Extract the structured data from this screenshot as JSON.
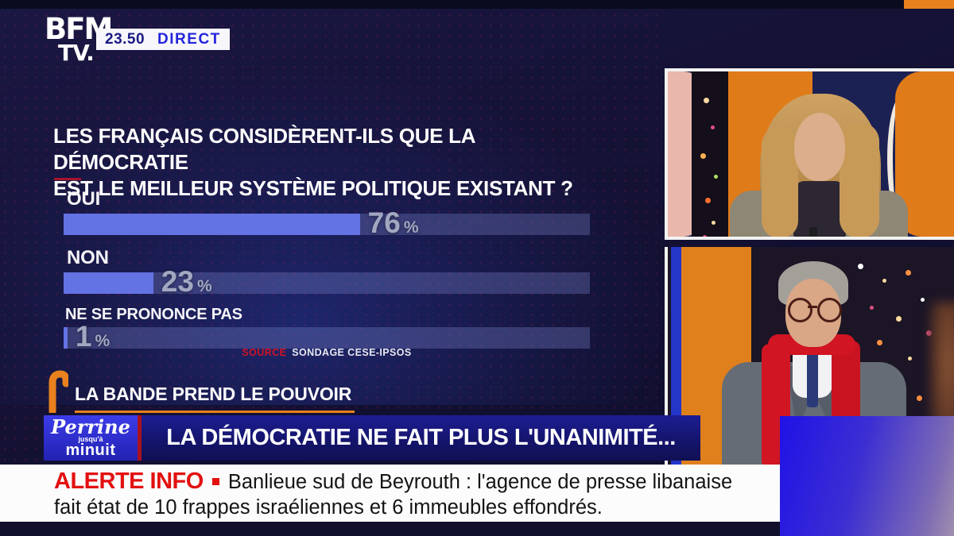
{
  "header": {
    "channel_line1": "BFM",
    "channel_line2": "TV.",
    "time": "23.50",
    "live_label": "DIRECT"
  },
  "chart_data": {
    "type": "bar",
    "orientation": "horizontal",
    "title_lines": [
      "LES FRANÇAIS CONSIDÈRENT-ILS QUE LA DÉMOCRATIE",
      "EST LE MEILLEUR SYSTÈME POLITIQUE EXISTANT ?"
    ],
    "categories": [
      "OUI",
      "NON",
      "NE SE PRONONCE PAS"
    ],
    "values": [
      76,
      23,
      1
    ],
    "unit": "%",
    "xlim": [
      0,
      100
    ],
    "track_max": 135,
    "grid": false,
    "source_prefix": "SOURCE",
    "source": "SONDAGE CESE-IPSOS"
  },
  "program_strip": {
    "label": "LA BANDE PREND LE POUVOIR"
  },
  "title_banner": {
    "program_line1": "Perrine",
    "program_line2": "jusqu'à",
    "program_line3": "minuit",
    "headline": "LA DÉMOCRATIE NE FAIT PLUS L'UNANIMITÉ..."
  },
  "alert": {
    "label": "ALERTE INFO",
    "line1": "Banlieue sud de Beyrouth : l'agence de presse libanaise",
    "line2": "fait état de 10 frappes israéliennes et 6 immeubles effondrés."
  },
  "colors": {
    "background_navy": "#141233",
    "accent_orange": "#e8811e",
    "alert_red": "#e31010",
    "bar_fill": "#6473e3",
    "bar_track": "rgba(132,143,215,0.30)",
    "value_gray": "rgba(168,175,198,0.95)",
    "banner_blue": "#15156e",
    "program_block_blue": "#2f2fd0",
    "scarf_red": "#d11522",
    "separator_red": "#a81220"
  }
}
